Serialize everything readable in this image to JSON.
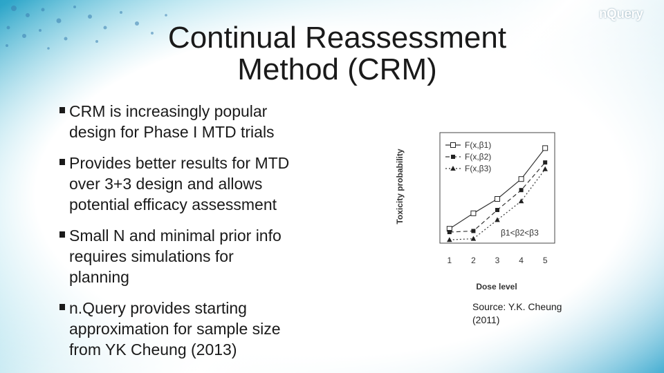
{
  "logo": "nQuery",
  "title_line1": "Continual Reassessment",
  "title_line2": "Method (CRM)",
  "bullets": [
    [
      "CRM is increasingly popular",
      "design for Phase I MTD trials"
    ],
    [
      "Provides better results for MTD",
      "over 3+3 design and allows",
      "potential efficacy assessment"
    ],
    [
      "Small N and minimal prior info",
      "requires simulations for",
      "planning"
    ],
    [
      "n.Query provides starting",
      "approximation for sample size",
      "from YK Cheung (2013)"
    ]
  ],
  "source_line1": "Source: Y.K. Cheung",
  "source_line2": "(2011)",
  "chart_data": {
    "type": "line",
    "x": [
      1,
      2,
      3,
      4,
      5
    ],
    "xlabel": "Dose level",
    "ylabel": "Toxicity probability",
    "annotation": "β1<β2<β3",
    "legend_position": "top-left",
    "grid": false,
    "series": [
      {
        "name": "F(x,β1)",
        "marker": "square-open",
        "dash": "solid",
        "values": [
          0.13,
          0.27,
          0.4,
          0.58,
          0.86
        ]
      },
      {
        "name": "F(x,β2)",
        "marker": "square-filled",
        "dash": "dashed",
        "values": [
          0.1,
          0.11,
          0.3,
          0.48,
          0.73
        ]
      },
      {
        "name": "F(x,β3)",
        "marker": "triangle-filled",
        "dash": "dotted",
        "values": [
          0.03,
          0.04,
          0.21,
          0.38,
          0.67
        ]
      }
    ]
  }
}
